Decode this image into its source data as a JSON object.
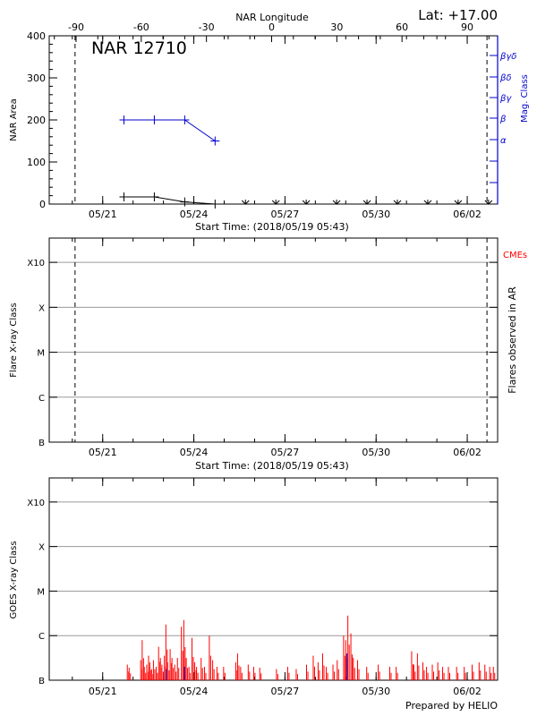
{
  "header": {
    "lat_label": "Lat: +17.00",
    "region_label": "NAR 12710",
    "footer": "Prepared by HELIO"
  },
  "colors": {
    "axis": "#000000",
    "grid": "#9a9a9a",
    "blue": "#0000cc",
    "red": "#ff0000",
    "black": "#000000"
  },
  "chart_data": [
    {
      "type": "line",
      "title": "",
      "xlabel": "Start Time: (2018/05/19 05:43)",
      "top_xlabel": "NAR Longitude",
      "top_ticks": [
        "-90",
        "-60",
        "-30",
        "0",
        "30",
        "60",
        "90"
      ],
      "top_tick_values": [
        -90,
        -60,
        -30,
        0,
        30,
        60,
        90
      ],
      "ylabel": "NAR Area",
      "right_ylabel": "Mag. Class",
      "ylim": [
        0,
        400
      ],
      "yticks": [
        0,
        100,
        200,
        300,
        400
      ],
      "ytick_labels": [
        "0",
        "100",
        "200",
        "300",
        "400"
      ],
      "right_ticks": [
        "α",
        "β",
        "βγ",
        "βδ",
        "βγδ"
      ],
      "date_ticks": [
        "05/21",
        "05/24",
        "05/27",
        "05/30",
        "06/02"
      ],
      "date_tick_days": [
        1.76,
        4.76,
        7.76,
        10.76,
        13.76
      ],
      "x_range_days": [
        0,
        14.76
      ],
      "dashed_lines_days": [
        0.85,
        14.41
      ],
      "series": [
        {
          "color": "blue",
          "x": [
            2.46,
            3.46,
            4.46,
            5.46
          ],
          "y": [
            200,
            200,
            200,
            150
          ]
        },
        {
          "color": "black",
          "x": [
            2.46,
            3.46,
            4.46,
            5.46
          ],
          "y": [
            17,
            17,
            5,
            0
          ]
        }
      ],
      "zero_markers_days": [
        6.46,
        7.46,
        8.46,
        9.46,
        10.46,
        11.46,
        12.46,
        13.46,
        14.46
      ]
    },
    {
      "type": "scatter",
      "title": "",
      "xlabel": "Start Time: (2018/05/19 05:43)",
      "ylabel": "Flare X-ray Class",
      "right_ylabel": "Flares observed in AR",
      "right_legend": "CMEs",
      "ytick_labels": [
        "B",
        "C",
        "M",
        "X",
        "X10"
      ],
      "date_ticks": [
        "05/21",
        "05/24",
        "05/27",
        "05/30",
        "06/02"
      ],
      "dashed_lines_days": [
        0.85,
        14.41
      ],
      "grid": true
    },
    {
      "type": "bar",
      "title": "",
      "ylabel": "GOES X-ray Class",
      "ytick_labels": [
        "B",
        "C",
        "M",
        "X",
        "X10"
      ],
      "date_ticks": [
        "05/21",
        "05/24",
        "05/27",
        "05/30",
        "06/02"
      ],
      "grid": true,
      "flux_spikes": [
        [
          2.57,
          0.35
        ],
        [
          2.63,
          0.28
        ],
        [
          3.01,
          0.45
        ],
        [
          3.06,
          0.9
        ],
        [
          3.13,
          0.3
        ],
        [
          3.21,
          0.35
        ],
        [
          3.27,
          0.55
        ],
        [
          3.31,
          0.4
        ],
        [
          3.37,
          0.25
        ],
        [
          3.43,
          0.45
        ],
        [
          3.52,
          0.3
        ],
        [
          3.6,
          0.75
        ],
        [
          3.66,
          0.5
        ],
        [
          3.71,
          0.35
        ],
        [
          3.79,
          0.55
        ],
        [
          3.84,
          1.25
        ],
        [
          3.9,
          0.4
        ],
        [
          3.98,
          0.7
        ],
        [
          4.04,
          0.5
        ],
        [
          4.13,
          0.35
        ],
        [
          4.22,
          0.5
        ],
        [
          4.35,
          1.2
        ],
        [
          4.43,
          1.35
        ],
        [
          4.51,
          0.5
        ],
        [
          4.6,
          0.3
        ],
        [
          4.7,
          0.95
        ],
        [
          4.79,
          0.4
        ],
        [
          4.85,
          0.3
        ],
        [
          5.0,
          0.5
        ],
        [
          5.11,
          0.3
        ],
        [
          5.27,
          1.0
        ],
        [
          5.38,
          0.45
        ],
        [
          5.52,
          0.3
        ],
        [
          5.74,
          0.3
        ],
        [
          6.14,
          0.4
        ],
        [
          6.2,
          0.6
        ],
        [
          6.3,
          0.3
        ],
        [
          6.55,
          0.35
        ],
        [
          6.73,
          0.3
        ],
        [
          6.93,
          0.28
        ],
        [
          7.48,
          0.25
        ],
        [
          7.85,
          0.3
        ],
        [
          8.13,
          0.25
        ],
        [
          8.47,
          0.35
        ],
        [
          8.69,
          0.55
        ],
        [
          8.85,
          0.4
        ],
        [
          9.0,
          0.6
        ],
        [
          9.12,
          0.3
        ],
        [
          9.34,
          0.35
        ],
        [
          9.48,
          0.45
        ],
        [
          9.69,
          1.0
        ],
        [
          9.76,
          0.9
        ],
        [
          9.83,
          1.45
        ],
        [
          9.93,
          1.05
        ],
        [
          10.01,
          0.5
        ],
        [
          10.15,
          0.45
        ],
        [
          10.45,
          0.3
        ],
        [
          10.83,
          0.35
        ],
        [
          11.21,
          0.3
        ],
        [
          11.42,
          0.3
        ],
        [
          11.93,
          0.65
        ],
        [
          12.0,
          0.35
        ],
        [
          12.12,
          0.6
        ],
        [
          12.3,
          0.4
        ],
        [
          12.42,
          0.3
        ],
        [
          12.61,
          0.35
        ],
        [
          12.79,
          0.4
        ],
        [
          12.95,
          0.3
        ],
        [
          13.14,
          0.3
        ],
        [
          13.41,
          0.3
        ],
        [
          13.66,
          0.3
        ],
        [
          13.92,
          0.35
        ],
        [
          14.15,
          0.4
        ],
        [
          14.34,
          0.35
        ],
        [
          14.5,
          0.3
        ],
        [
          14.62,
          0.3
        ]
      ]
    }
  ]
}
